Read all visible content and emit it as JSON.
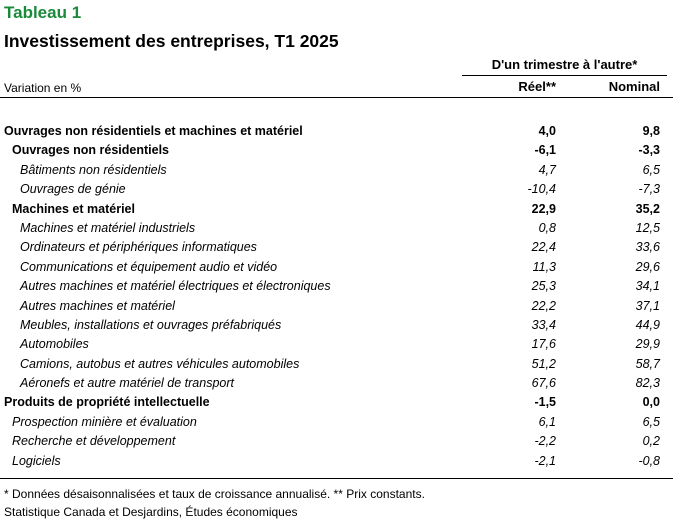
{
  "header": {
    "table_label": "Tableau 1",
    "title": "Investissement des entreprises, T1 2025",
    "group_header": "D'un trimestre à l'autre*",
    "unit_label": "Variation en %",
    "col_real": "Réel**",
    "col_nominal": "Nominal"
  },
  "rows": [
    {
      "label": "Ouvrages non résidentiels et machines et matériel",
      "real": "4,0",
      "nominal": "9,8"
    },
    {
      "label": "Ouvrages non résidentiels",
      "real": "-6,1",
      "nominal": "-3,3"
    },
    {
      "label": "Bâtiments non résidentiels",
      "real": "4,7",
      "nominal": "6,5"
    },
    {
      "label": "Ouvrages de génie",
      "real": "-10,4",
      "nominal": "-7,3"
    },
    {
      "label": "Machines et matériel",
      "real": "22,9",
      "nominal": "35,2"
    },
    {
      "label": "Machines et matériel industriels",
      "real": "0,8",
      "nominal": "12,5"
    },
    {
      "label": "Ordinateurs et périphériques informatiques",
      "real": "22,4",
      "nominal": "33,6"
    },
    {
      "label": "Communications et équipement audio et vidéo",
      "real": "11,3",
      "nominal": "29,6"
    },
    {
      "label": "Autres machines et matériel électriques et électroniques",
      "real": "25,3",
      "nominal": "34,1"
    },
    {
      "label": "Autres machines et matériel",
      "real": "22,2",
      "nominal": "37,1"
    },
    {
      "label": "Meubles, installations et ouvrages préfabriqués",
      "real": "33,4",
      "nominal": "44,9"
    },
    {
      "label": "Automobiles",
      "real": "17,6",
      "nominal": "29,9"
    },
    {
      "label": "Camions, autobus et autres véhicules automobiles",
      "real": "51,2",
      "nominal": "58,7"
    },
    {
      "label": "Aéronefs et autre matériel de transport",
      "real": "67,6",
      "nominal": "82,3"
    },
    {
      "label": "Produits de propriété intellectuelle",
      "real": "-1,5",
      "nominal": "0,0"
    },
    {
      "label": "Prospection minière et évaluation",
      "real": "6,1",
      "nominal": "6,5"
    },
    {
      "label": "Recherche et développement",
      "real": "-2,2",
      "nominal": "0,2"
    },
    {
      "label": "Logiciels",
      "real": "-2,1",
      "nominal": "-0,8"
    }
  ],
  "footer": {
    "footnote": "* Données désaisonnalisées et taux de croissance annualisé. ** Prix constants.",
    "source": "Statistique Canada et Desjardins, Études économiques"
  },
  "colors": {
    "table_label": "#1a8a3a"
  }
}
